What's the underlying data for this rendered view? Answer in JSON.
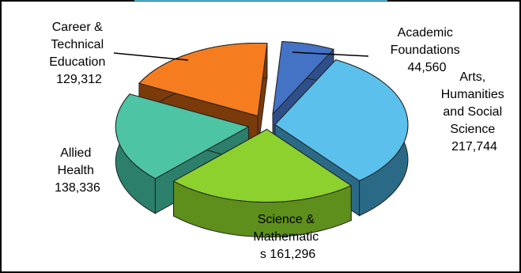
{
  "chart_data": {
    "type": "pie",
    "title": "",
    "style": "3d-exploded",
    "categories": [
      "Academic Foundations",
      "Arts, Humanities and Social Science",
      "Science & Mathematics",
      "Allied Health",
      "Career & Technical Education"
    ],
    "values": [
      44560,
      217744,
      161296,
      138336,
      129312
    ],
    "labels": [
      {
        "lines": [
          "Academic",
          "Foundations",
          "44,560"
        ]
      },
      {
        "lines": [
          "Arts,",
          "Humanities",
          "and Social",
          "Science",
          "217,744"
        ]
      },
      {
        "lines": [
          "Science &",
          "Mathematic",
          "s    161,296"
        ]
      },
      {
        "lines": [
          "Allied",
          "Health",
          "138,336"
        ]
      },
      {
        "lines": [
          "Career &",
          "Technical",
          "Education",
          "129,312"
        ]
      }
    ],
    "colors": {
      "top": [
        "#4472C4",
        "#5BC0EB",
        "#8CD12E",
        "#4DC4A4",
        "#F57C1F"
      ],
      "side": [
        "#2E4F8A",
        "#2A6A86",
        "#5E8E1C",
        "#2C7F6B",
        "#7A3A0A"
      ]
    },
    "legend": "none"
  }
}
